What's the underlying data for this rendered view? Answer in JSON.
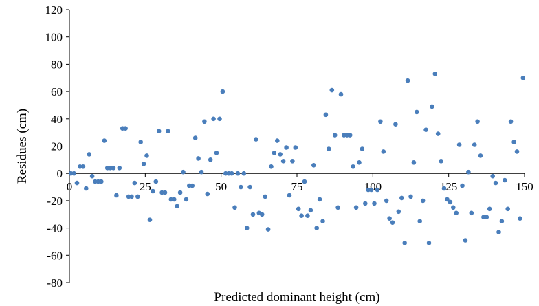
{
  "chart_data": {
    "type": "scatter",
    "title": "",
    "xlabel": "Predicted dominant height (cm)",
    "ylabel": "Residues (cm)",
    "xlim": [
      0,
      150
    ],
    "ylim": [
      -80,
      120
    ],
    "x_ticks": [
      0,
      25,
      50,
      75,
      100,
      125,
      150
    ],
    "x_tick_labels": [
      "0",
      "25",
      "50",
      "75",
      "100",
      "125",
      "150"
    ],
    "y_ticks": [
      -80,
      -60,
      -40,
      -20,
      0,
      20,
      40,
      60,
      80,
      100,
      120
    ],
    "y_tick_labels": [
      "-80",
      "-60",
      "-40",
      "-20",
      "0",
      "20",
      "40",
      "60",
      "80",
      "100",
      "120"
    ],
    "grid": false,
    "legend": "none",
    "marker_color": "#4a7ebb",
    "series": [
      {
        "values": [
          [
            0.5,
            0
          ],
          [
            1.5,
            0
          ],
          [
            2.5,
            -7
          ],
          [
            3.5,
            5
          ],
          [
            4.5,
            5
          ],
          [
            5.5,
            -11
          ],
          [
            6.5,
            14
          ],
          [
            7.5,
            -2
          ],
          [
            8.5,
            -6
          ],
          [
            9.5,
            -6
          ],
          [
            10.5,
            -6
          ],
          [
            11.5,
            24
          ],
          [
            12.5,
            4
          ],
          [
            13.5,
            4
          ],
          [
            14.5,
            4
          ],
          [
            15.5,
            -16
          ],
          [
            16.5,
            4
          ],
          [
            17.5,
            33
          ],
          [
            18.5,
            33
          ],
          [
            19.5,
            -17
          ],
          [
            20.5,
            -17
          ],
          [
            21.5,
            -7
          ],
          [
            22.5,
            -17
          ],
          [
            23.5,
            23
          ],
          [
            24.5,
            7
          ],
          [
            25.5,
            13
          ],
          [
            26.5,
            -34
          ],
          [
            27.5,
            -13
          ],
          [
            28.5,
            -6
          ],
          [
            29.5,
            31
          ],
          [
            30.5,
            -14
          ],
          [
            31.5,
            -14
          ],
          [
            32.5,
            31
          ],
          [
            33.5,
            -19
          ],
          [
            34.5,
            -19
          ],
          [
            35.5,
            -24
          ],
          [
            36.5,
            -14
          ],
          [
            37.5,
            1
          ],
          [
            38.5,
            -19
          ],
          [
            39.5,
            -9
          ],
          [
            40.5,
            -9
          ],
          [
            41.5,
            26
          ],
          [
            42.5,
            11
          ],
          [
            43.5,
            1
          ],
          [
            44.5,
            38
          ],
          [
            45.5,
            -15
          ],
          [
            46.5,
            10
          ],
          [
            47.5,
            40
          ],
          [
            48.5,
            15
          ],
          [
            49.5,
            40
          ],
          [
            50.5,
            60
          ],
          [
            51.5,
            0
          ],
          [
            52.5,
            0
          ],
          [
            53.5,
            0
          ],
          [
            54.5,
            -25
          ],
          [
            55.5,
            0
          ],
          [
            56.5,
            -10
          ],
          [
            57.5,
            0
          ],
          [
            58.5,
            -40
          ],
          [
            59.5,
            -10
          ],
          [
            60.5,
            -30
          ],
          [
            61.5,
            25
          ],
          [
            62.5,
            -29
          ],
          [
            63.5,
            -30
          ],
          [
            64.5,
            -17
          ],
          [
            65.5,
            -41
          ],
          [
            66.5,
            5
          ],
          [
            67.5,
            15
          ],
          [
            68.5,
            24
          ],
          [
            69.5,
            14
          ],
          [
            70.5,
            9
          ],
          [
            71.5,
            19
          ],
          [
            72.5,
            -16
          ],
          [
            73.5,
            9
          ],
          [
            74.5,
            19
          ],
          [
            75.5,
            -26
          ],
          [
            76.5,
            -31
          ],
          [
            77.5,
            -6
          ],
          [
            78.5,
            -31
          ],
          [
            79.5,
            -27
          ],
          [
            80.5,
            6
          ],
          [
            81.5,
            -40
          ],
          [
            82.5,
            -19
          ],
          [
            83.5,
            -35
          ],
          [
            84.5,
            43
          ],
          [
            85.5,
            18
          ],
          [
            86.5,
            61
          ],
          [
            87.5,
            28
          ],
          [
            88.5,
            -25
          ],
          [
            89.5,
            58
          ],
          [
            90.5,
            28
          ],
          [
            91.5,
            28
          ],
          [
            92.5,
            28
          ],
          [
            93.5,
            5
          ],
          [
            94.5,
            -25
          ],
          [
            95.5,
            8
          ],
          [
            96.5,
            18
          ],
          [
            97.5,
            -22
          ],
          [
            98.5,
            -12
          ],
          [
            99.5,
            -12
          ],
          [
            100.5,
            -22
          ],
          [
            101.5,
            -12
          ],
          [
            102.5,
            38
          ],
          [
            103.5,
            16
          ],
          [
            104.5,
            -20
          ],
          [
            105.5,
            -33
          ],
          [
            106.5,
            -36
          ],
          [
            107.5,
            36
          ],
          [
            108.5,
            -28
          ],
          [
            109.5,
            -18
          ],
          [
            110.5,
            -51
          ],
          [
            111.5,
            68
          ],
          [
            112.5,
            -17
          ],
          [
            113.5,
            8
          ],
          [
            114.5,
            45
          ],
          [
            115.5,
            -35
          ],
          [
            116.5,
            -20
          ],
          [
            117.5,
            32
          ],
          [
            118.5,
            -51
          ],
          [
            119.5,
            49
          ],
          [
            120.5,
            73
          ],
          [
            121.5,
            29
          ],
          [
            122.5,
            9
          ],
          [
            123.5,
            -11
          ],
          [
            124.5,
            -19
          ],
          [
            125.5,
            -21
          ],
          [
            126.5,
            -25
          ],
          [
            127.5,
            -29
          ],
          [
            128.5,
            21
          ],
          [
            129.5,
            -9
          ],
          [
            130.5,
            -49
          ],
          [
            131.5,
            1
          ],
          [
            132.5,
            -29
          ],
          [
            133.5,
            21
          ],
          [
            134.5,
            38
          ],
          [
            135.5,
            13
          ],
          [
            136.5,
            -32
          ],
          [
            137.5,
            -32
          ],
          [
            138.5,
            -26
          ],
          [
            139.5,
            -2
          ],
          [
            140.5,
            -7
          ],
          [
            141.5,
            -43
          ],
          [
            142.5,
            -35
          ],
          [
            143.5,
            -5
          ],
          [
            144.5,
            -26
          ],
          [
            145.5,
            38
          ],
          [
            146.5,
            23
          ],
          [
            147.5,
            16
          ],
          [
            148.5,
            -33
          ],
          [
            149.5,
            70
          ]
        ]
      }
    ]
  }
}
